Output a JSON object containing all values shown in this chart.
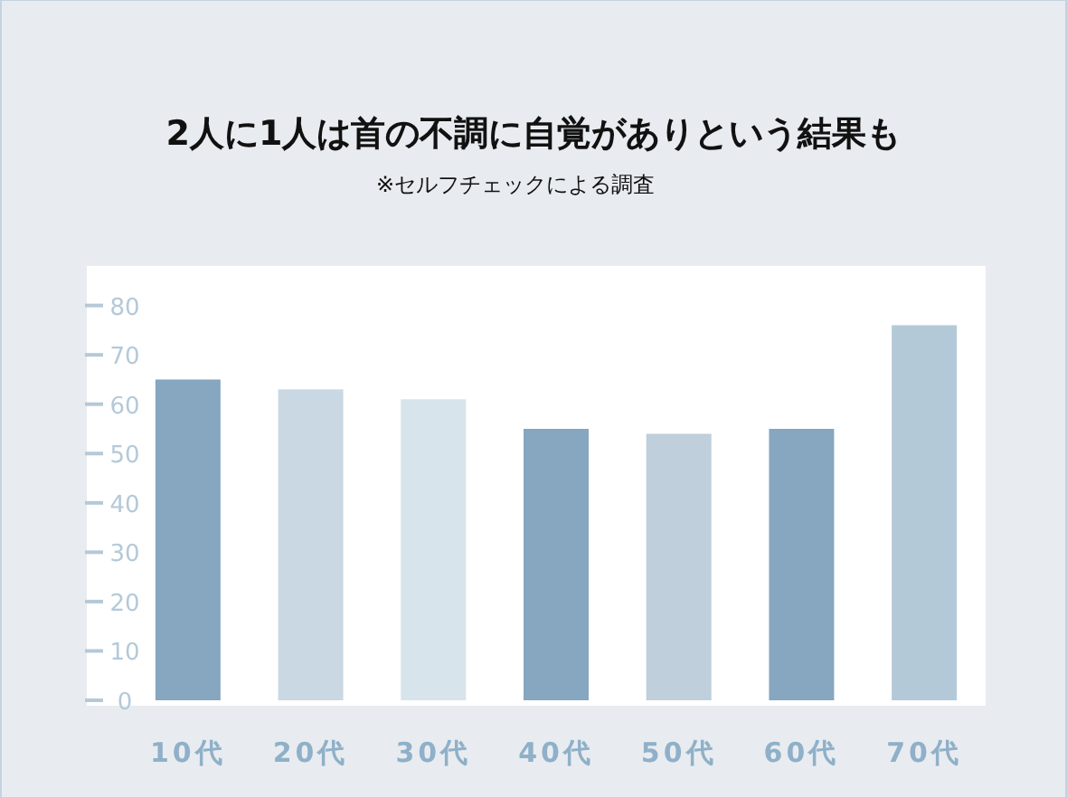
{
  "chart_data": {
    "type": "bar",
    "title": "2人に1人は首の不調に自覚がありという結果も",
    "subtitle": "※セルフチェックによる調査",
    "categories": [
      "10代",
      "20代",
      "30代",
      "40代",
      "50代",
      "60代",
      "70代"
    ],
    "values": [
      65,
      63,
      61,
      55,
      54,
      55,
      76
    ],
    "colors": [
      "#87a6bf",
      "#c9d8e3",
      "#d8e4ec",
      "#87a6bf",
      "#bfcfdc",
      "#87a6bf",
      "#b4c9d8"
    ],
    "ylim": [
      0,
      88
    ],
    "yticks": [
      0,
      10,
      20,
      30,
      40,
      50,
      60,
      70,
      80
    ],
    "grid": false
  }
}
